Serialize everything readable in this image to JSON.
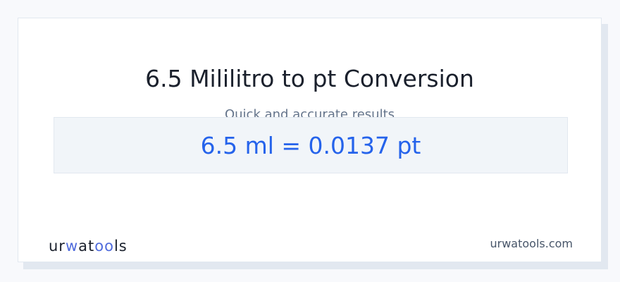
{
  "title": "6.5 Mililitro to pt Conversion",
  "subtitle": "Quick and accurate results",
  "result": "6.5 ml = 0.0137 pt",
  "logo": {
    "text": "urwatools",
    "p1": "ur",
    "p2": "w",
    "p3": "at",
    "p4": "oo",
    "p5": "ls"
  },
  "site": "urwatools.com",
  "colors": {
    "accent": "#2563eb",
    "logo_accent": "#4f6bdc"
  }
}
